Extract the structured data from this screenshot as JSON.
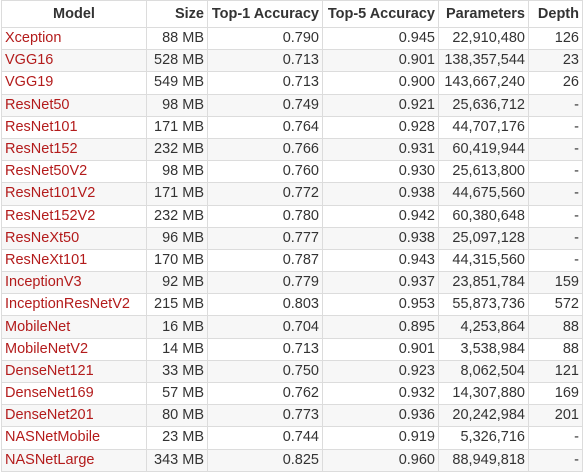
{
  "table": {
    "headers": [
      "Model",
      "Size",
      "Top-1 Accuracy",
      "Top-5 Accuracy",
      "Parameters",
      "Depth"
    ],
    "rows": [
      [
        "Xception",
        "88 MB",
        "0.790",
        "0.945",
        "22,910,480",
        "126"
      ],
      [
        "VGG16",
        "528 MB",
        "0.713",
        "0.901",
        "138,357,544",
        "23"
      ],
      [
        "VGG19",
        "549 MB",
        "0.713",
        "0.900",
        "143,667,240",
        "26"
      ],
      [
        "ResNet50",
        "98 MB",
        "0.749",
        "0.921",
        "25,636,712",
        "-"
      ],
      [
        "ResNet101",
        "171 MB",
        "0.764",
        "0.928",
        "44,707,176",
        "-"
      ],
      [
        "ResNet152",
        "232 MB",
        "0.766",
        "0.931",
        "60,419,944",
        "-"
      ],
      [
        "ResNet50V2",
        "98 MB",
        "0.760",
        "0.930",
        "25,613,800",
        "-"
      ],
      [
        "ResNet101V2",
        "171 MB",
        "0.772",
        "0.938",
        "44,675,560",
        "-"
      ],
      [
        "ResNet152V2",
        "232 MB",
        "0.780",
        "0.942",
        "60,380,648",
        "-"
      ],
      [
        "ResNeXt50",
        "96 MB",
        "0.777",
        "0.938",
        "25,097,128",
        "-"
      ],
      [
        "ResNeXt101",
        "170 MB",
        "0.787",
        "0.943",
        "44,315,560",
        "-"
      ],
      [
        "InceptionV3",
        "92 MB",
        "0.779",
        "0.937",
        "23,851,784",
        "159"
      ],
      [
        "InceptionResNetV2",
        "215 MB",
        "0.803",
        "0.953",
        "55,873,736",
        "572"
      ],
      [
        "MobileNet",
        "16 MB",
        "0.704",
        "0.895",
        "4,253,864",
        "88"
      ],
      [
        "MobileNetV2",
        "14 MB",
        "0.713",
        "0.901",
        "3,538,984",
        "88"
      ],
      [
        "DenseNet121",
        "33 MB",
        "0.750",
        "0.923",
        "8,062,504",
        "121"
      ],
      [
        "DenseNet169",
        "57 MB",
        "0.762",
        "0.932",
        "14,307,880",
        "169"
      ],
      [
        "DenseNet201",
        "80 MB",
        "0.773",
        "0.936",
        "20,242,984",
        "201"
      ],
      [
        "NASNetMobile",
        "23 MB",
        "0.744",
        "0.919",
        "5,326,716",
        "-"
      ],
      [
        "NASNetLarge",
        "343 MB",
        "0.825",
        "0.960",
        "88,949,818",
        "-"
      ]
    ]
  },
  "colors": {
    "link": "#b31b1b",
    "text": "#333333",
    "border": "#dcdcdc",
    "row_alt": "#f7f7f7"
  }
}
